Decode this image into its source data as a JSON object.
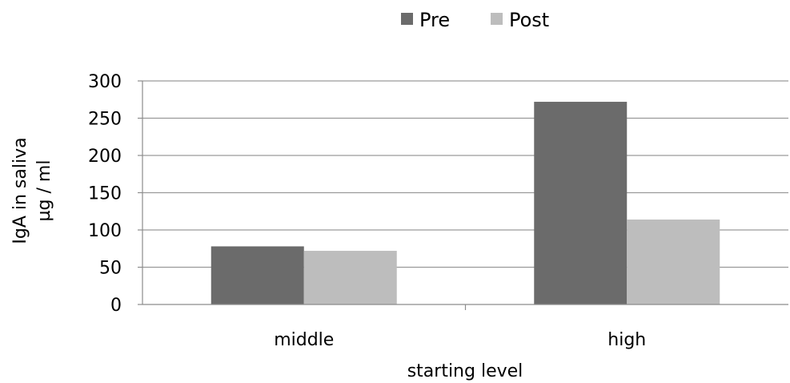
{
  "chart_data": {
    "type": "bar",
    "categories": [
      "middle",
      "high"
    ],
    "series": [
      {
        "name": "Pre",
        "values": [
          78,
          272
        ],
        "color": "#6b6b6b"
      },
      {
        "name": "Post",
        "values": [
          72,
          114
        ],
        "color": "#bdbdbd"
      }
    ],
    "xlabel": "starting level",
    "ylabel_lines": [
      "IgA in saliva",
      "µg / ml"
    ],
    "ylim": [
      0,
      300
    ],
    "yticks": [
      0,
      50,
      100,
      150,
      200,
      250,
      300
    ],
    "grid": true,
    "legend": "top-center",
    "gridline_color": "#9a9a9a",
    "axis_color": "#8c8c8c"
  }
}
